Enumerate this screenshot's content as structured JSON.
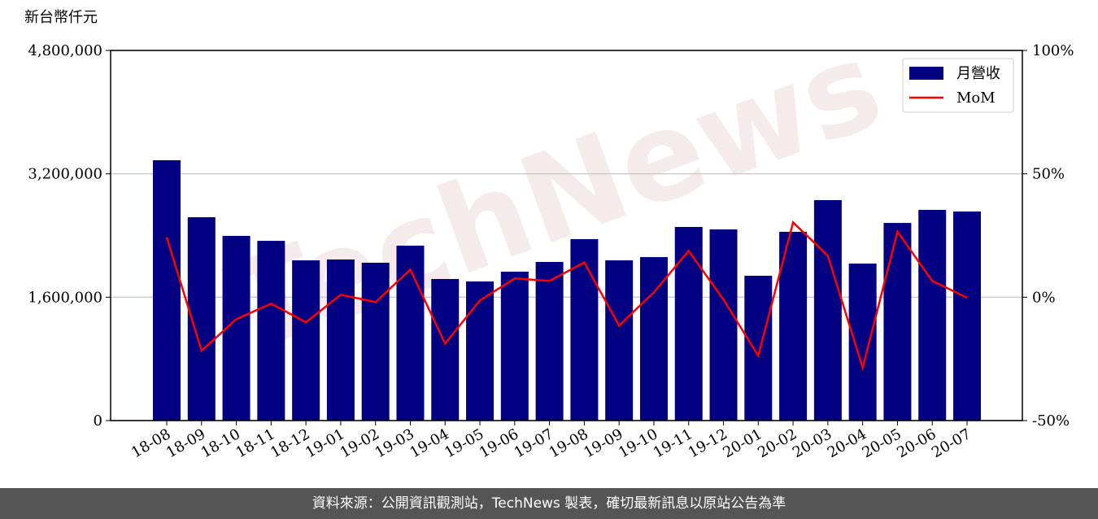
{
  "chart_data": {
    "type": "bar",
    "y_label": "新台幣仟元",
    "watermark": "TechNews",
    "categories": [
      "18-08",
      "18-09",
      "18-10",
      "18-11",
      "18-12",
      "19-01",
      "19-02",
      "19-03",
      "19-04",
      "19-05",
      "19-06",
      "19-07",
      "19-08",
      "19-09",
      "19-10",
      "19-11",
      "19-12",
      "20-01",
      "20-02",
      "20-03",
      "20-04",
      "20-05",
      "20-06",
      "20-07"
    ],
    "series": [
      {
        "name": "月營收",
        "type": "bar",
        "color": "#000080",
        "values": [
          3376000,
          2637000,
          2395000,
          2331000,
          2078000,
          2089000,
          2047000,
          2268000,
          1836000,
          1804000,
          1931000,
          2057000,
          2353000,
          2078000,
          2120000,
          2511000,
          2479000,
          1878000,
          2448000,
          2859000,
          2036000,
          2563000,
          2732000,
          2711000
        ]
      },
      {
        "name": "MoM",
        "type": "line",
        "axis": "y2",
        "color": "#ff0000",
        "values": [
          24.3,
          -21.7,
          -8.9,
          -2.6,
          -10.2,
          1.0,
          -2.0,
          11.2,
          -18.8,
          -1.3,
          7.6,
          6.6,
          14.1,
          -11.5,
          2.0,
          18.8,
          -1.0,
          -23.7,
          30.3,
          16.8,
          -28.6,
          26.6,
          6.6,
          -0.2
        ]
      }
    ],
    "ylim": [
      0,
      4800000
    ],
    "yticks": [
      0,
      {
        "value": 1600000,
        "label": "1,600,000"
      },
      {
        "value": 3200000,
        "label": "3,200,000"
      },
      {
        "value": 4800000,
        "label": "4,800,000"
      }
    ],
    "y2lim": [
      -50,
      100
    ],
    "y2ticks": [
      {
        "value": -50,
        "label": "-50%"
      },
      {
        "value": 0,
        "label": "0%"
      },
      {
        "value": 50,
        "label": "50%"
      },
      {
        "value": 100,
        "label": "100%"
      }
    ],
    "grid": true,
    "legend": "upper right",
    "footer": "資料來源：公開資訊觀測站，TechNews 製表，確切最新訊息以原站公告為準"
  }
}
